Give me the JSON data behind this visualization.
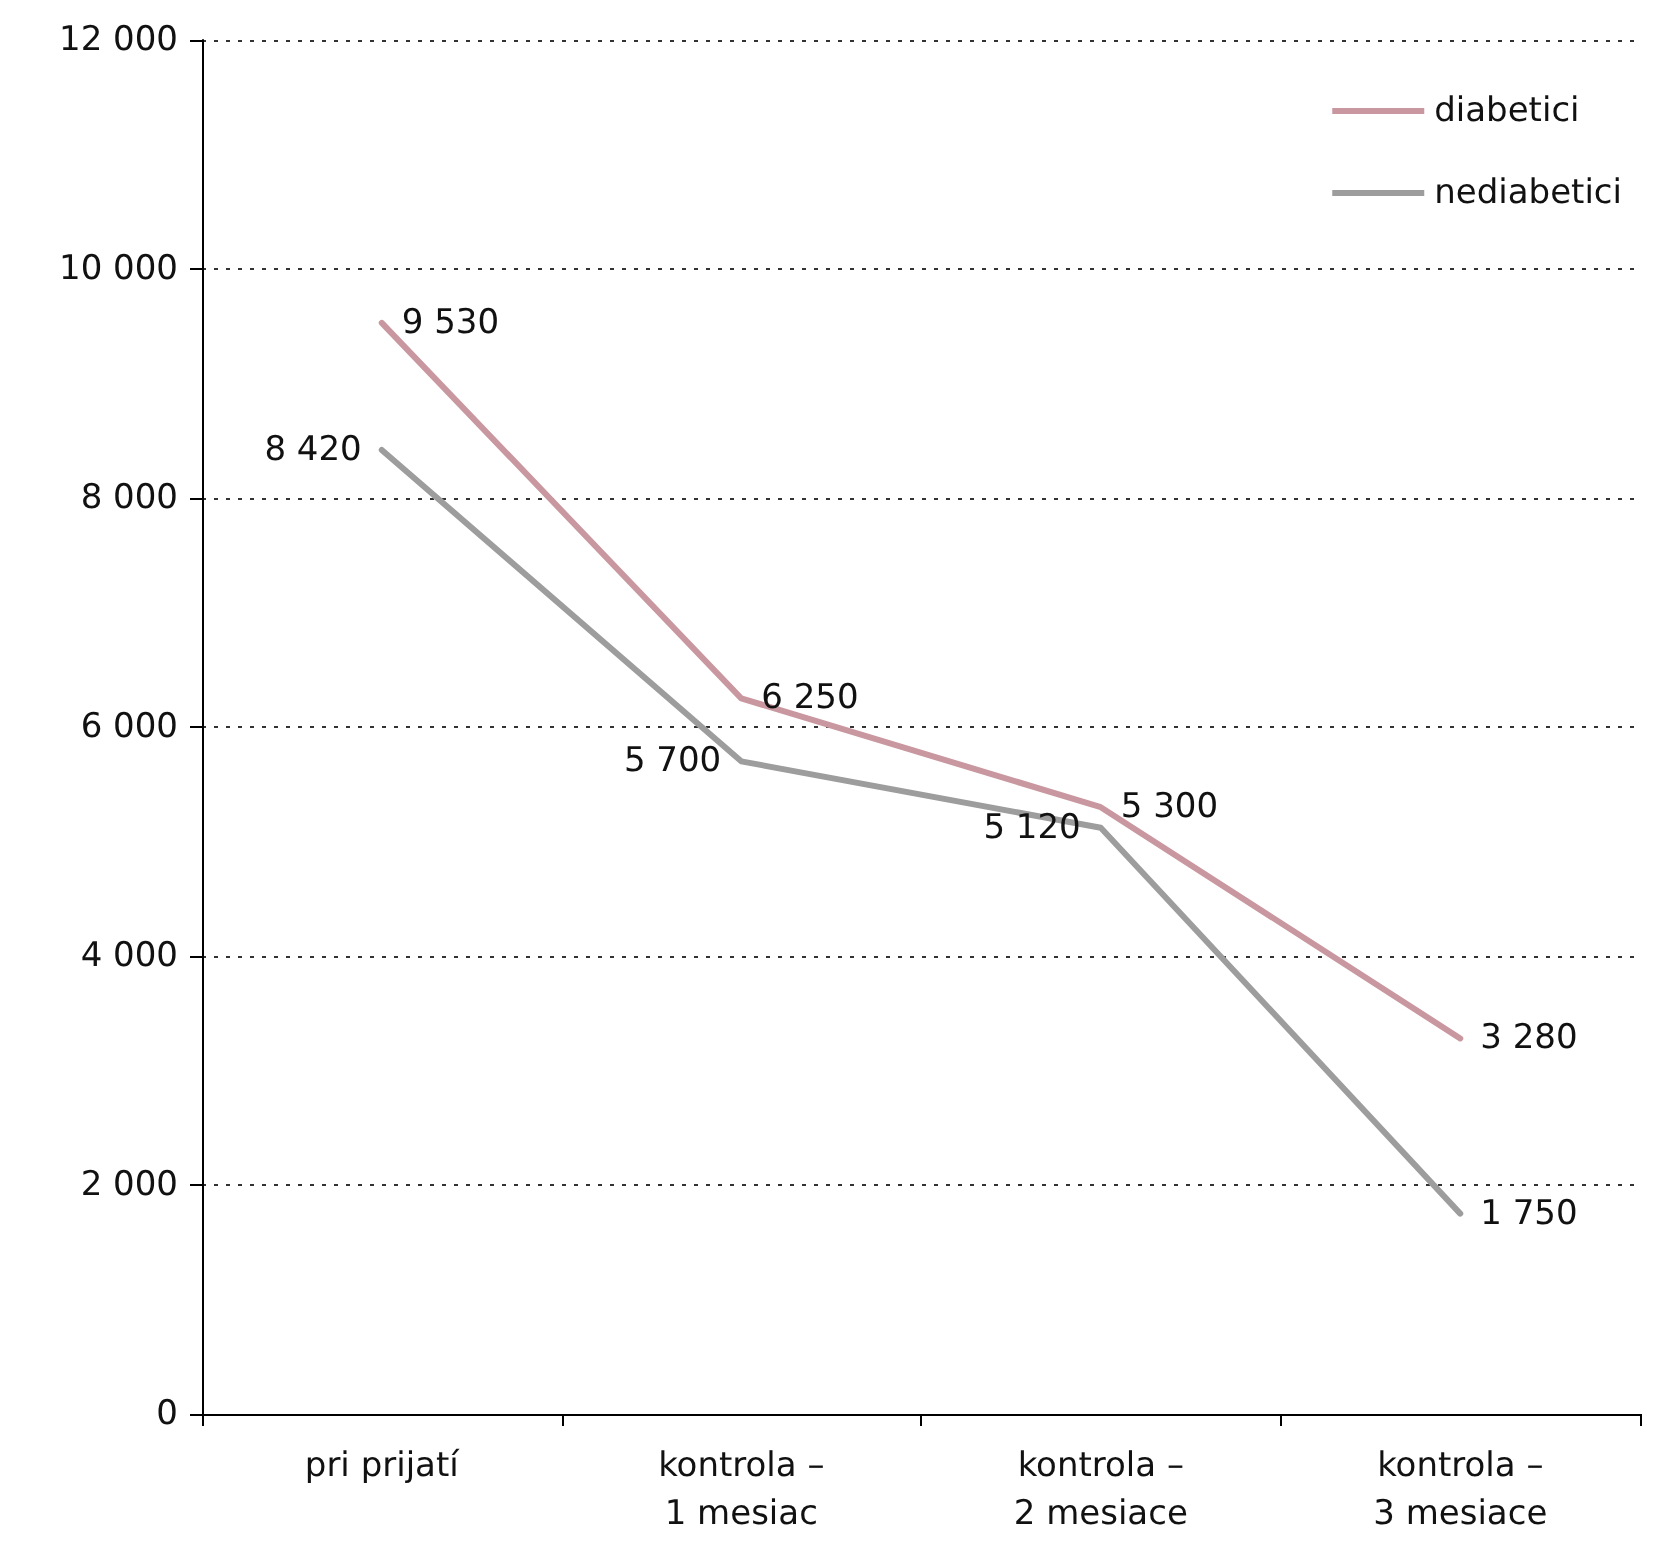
{
  "chart_data": {
    "type": "line",
    "categories": [
      "pri prijatí",
      "kontrola –\n1 mesiac",
      "kontrola –\n2 mesiace",
      "kontrola –\n3 mesiace"
    ],
    "series": [
      {
        "name": "diabetici",
        "color": "#c9979f",
        "values": [
          9530,
          6250,
          5300,
          3280
        ],
        "value_labels": [
          "9 530",
          "6 250",
          "5 300",
          "3 280"
        ]
      },
      {
        "name": "nediabetici",
        "color": "#9d9d9d",
        "values": [
          8420,
          5700,
          5120,
          1750
        ],
        "value_labels": [
          "8 420",
          "5 700",
          "5 120",
          "1 750"
        ]
      }
    ],
    "ylim": [
      0,
      12000
    ],
    "yticks": [
      {
        "value": 0,
        "label": "0"
      },
      {
        "value": 2000,
        "label": "2 000"
      },
      {
        "value": 4000,
        "label": "4 000"
      },
      {
        "value": 6000,
        "label": "6 000"
      },
      {
        "value": 8000,
        "label": "8 000"
      },
      {
        "value": 10000,
        "label": "10 000"
      },
      {
        "value": 12000,
        "label": "12 000"
      }
    ],
    "grid": "y",
    "legend": "top right",
    "marker": "none",
    "line_style": "solid"
  }
}
